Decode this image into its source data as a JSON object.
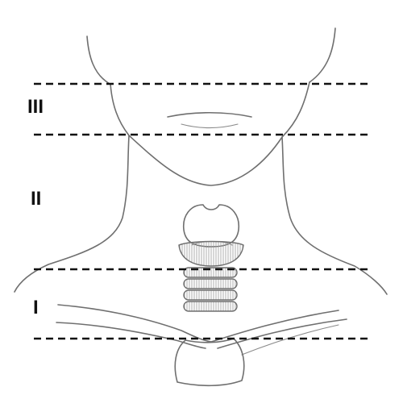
{
  "zones": [
    {
      "label": "III"
    },
    {
      "label": "II"
    },
    {
      "label": "I"
    }
  ],
  "colors": {
    "divider": "#111111",
    "sketch": "#6f6f6f",
    "background": "#ffffff"
  }
}
